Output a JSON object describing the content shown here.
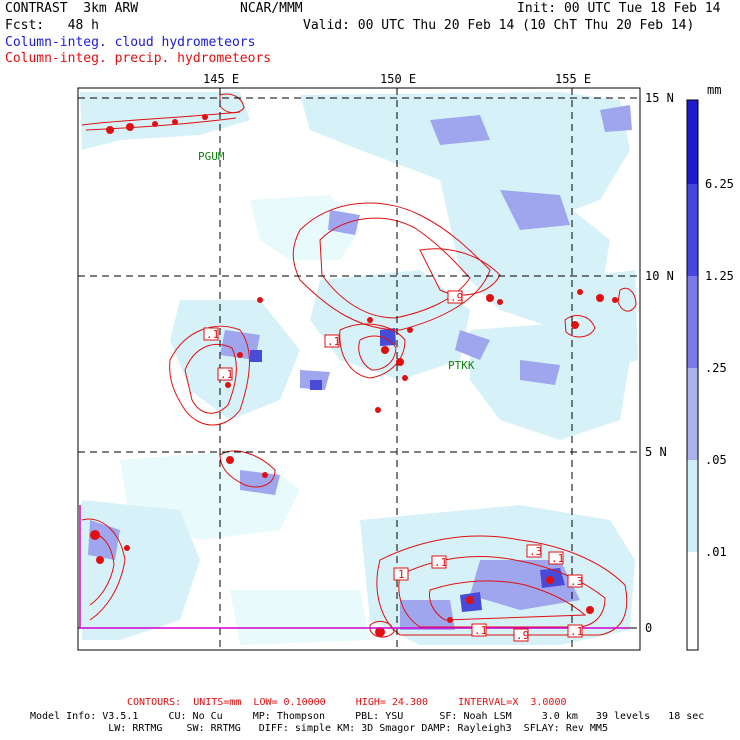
{
  "header": {
    "model": "CONTRAST  3km ARW",
    "org": "NCAR/MMM",
    "init": "Init: 00 UTC Tue 18 Feb 14",
    "fcst_label": "Fcst:   48 h",
    "valid": "Valid: 00 UTC Thu 20 Feb 14 (10 ChT Thu 20 Feb 14)",
    "field1": "Column-integ. cloud hydrometeors",
    "field2": "Column-integ. precip. hydrometeors"
  },
  "map": {
    "lon_labels": [
      "145 E",
      "150 E",
      "155 E"
    ],
    "lat_labels": [
      "15 N",
      "10 N",
      "5 N",
      "0"
    ],
    "stations": [
      "PGUM",
      "PTKK"
    ],
    "contour_labels": [
      ".1",
      ".1",
      ".1",
      ".9",
      "1",
      ".1",
      ".3",
      ".1",
      ".3",
      ".1",
      ".9",
      ".1"
    ]
  },
  "colorbar": {
    "units": "mm",
    "levels": [
      "6.25",
      "1.25",
      ".25",
      ".05",
      ".01"
    ],
    "colors": [
      "#1b1bd0",
      "#4545e0",
      "#7a7ae8",
      "#aab2f0",
      "#cfeef8",
      "#e8fafc",
      "#ffffff"
    ]
  },
  "footer": {
    "contours": "CONTOURS:  UNITS=mm  LOW= 0.10000     HIGH= 24.300     INTERVAL=X  3.0000",
    "line1": "Model Info: V3.5.1     CU: No Cu     MP: Thompson     PBL: YSU      SF: Noah LSM     3.0 km   39 levels   18 sec",
    "line2": "             LW: RRTMG    SW: RRTMG   DIFF: simple KM: 3D Smagor DAMP: Rayleigh3  SFLAY: Rev MM5"
  },
  "colors": {
    "cloud_light": "#d6f2f8",
    "cloud_mid": "#9fa6ee",
    "cloud_dark": "#4a4ad8",
    "precip_contour": "#e01010",
    "boundary": "#d000d0"
  }
}
